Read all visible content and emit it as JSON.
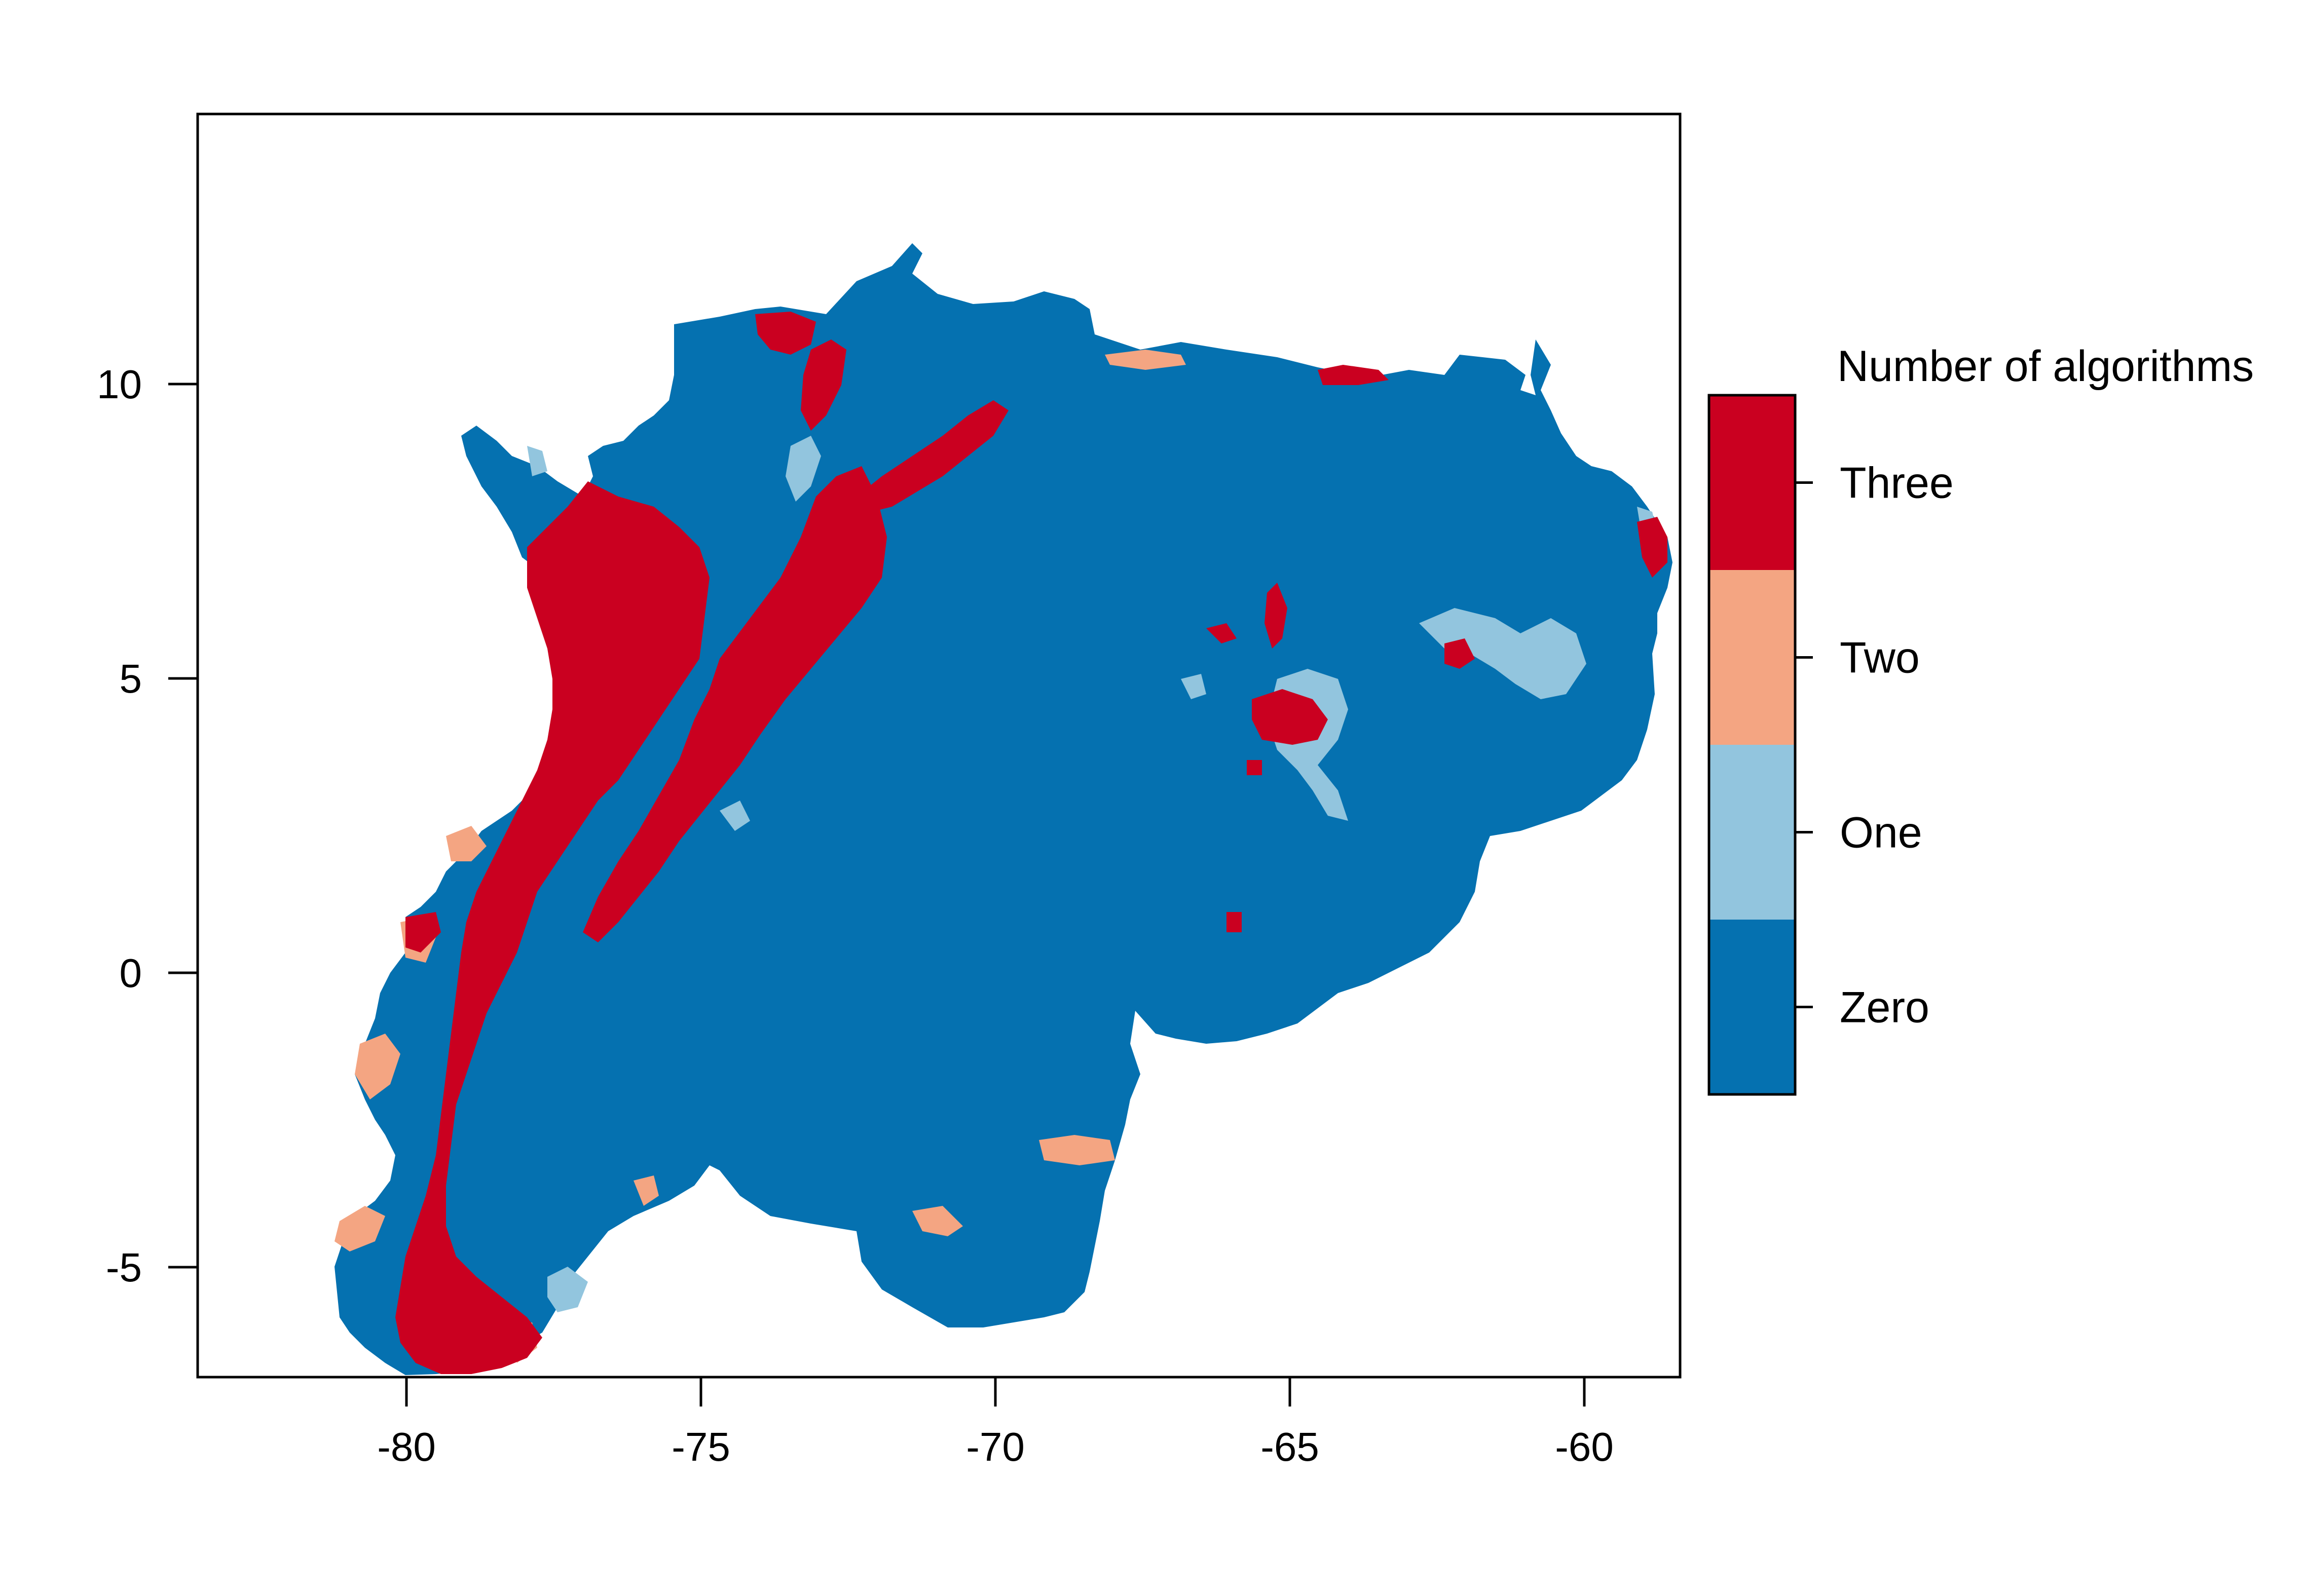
{
  "map": {
    "x_axis": {
      "ticks": [
        -80,
        -75,
        -70,
        -65,
        -60
      ],
      "tick_labels": [
        "-80",
        "-75",
        "-70",
        "-65",
        "-60"
      ]
    },
    "y_axis": {
      "ticks": [
        -5,
        0,
        5,
        10
      ],
      "tick_labels": [
        "-5",
        "0",
        "5",
        "10"
      ]
    },
    "legend": {
      "title": "Number of algorithms",
      "classes": [
        {
          "label": "Three",
          "value": 3,
          "color": "#CA0020"
        },
        {
          "label": "Two",
          "value": 2,
          "color": "#F4A582"
        },
        {
          "label": "One",
          "value": 1,
          "color": "#92C5DE"
        },
        {
          "label": "Zero",
          "value": 0,
          "color": "#0571B0"
        }
      ]
    },
    "colors": {
      "zero": "#0571B0",
      "one": "#92C5DE",
      "two": "#F4A582",
      "three": "#CA0020"
    }
  }
}
